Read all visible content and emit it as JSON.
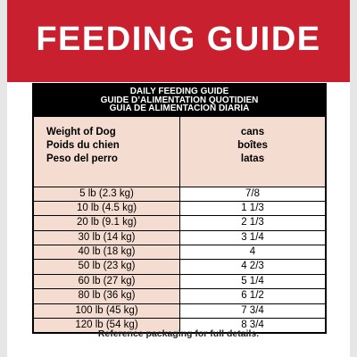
{
  "banner": {
    "title": "FEEDING GUIDE"
  },
  "table": {
    "header_lines": [
      "DAILY FEEDING GUIDE",
      "GUIDE D’ALIMENTATION QUOTIDIEN",
      "GUIA DE ALIMENTACION DIARIA"
    ],
    "col1_header": [
      "Weight of Dog",
      "Poids du chien",
      "Peso del perro"
    ],
    "col2_header": [
      "cans",
      "boîtes",
      "latas"
    ],
    "rows": [
      {
        "weight": "5 lb (2.3 kg)",
        "cans": "7/8"
      },
      {
        "weight": "10 lb (4.5 kg)",
        "cans": "1 1/3"
      },
      {
        "weight": "20 lb (9.1 kg)",
        "cans": "2 1/3"
      },
      {
        "weight": "30 lb (14 kg)",
        "cans": "3 1/4"
      },
      {
        "weight": "40 lb (18 kg)",
        "cans": "4"
      },
      {
        "weight": "50 lb (23 kg)",
        "cans": "4 2/3"
      },
      {
        "weight": "60 lb (27 kg)",
        "cans": "5 1/4"
      },
      {
        "weight": "80 lb (36 kg)",
        "cans": "6 1/2"
      },
      {
        "weight": "100 lb (45 kg)",
        "cans": "7 3/4"
      },
      {
        "weight": "120 lb (54 kg)",
        "cans": "8 3/4"
      }
    ]
  },
  "footer": {
    "note": "Reference packaging for full details."
  },
  "colors": {
    "banner_red": "#c8202f",
    "cell_peach": "#f5dcd0",
    "frame_gray": "#e6e6e6"
  }
}
